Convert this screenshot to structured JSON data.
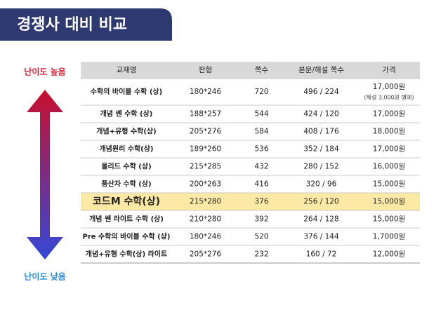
{
  "header": {
    "title": "경쟁사 대비 비교"
  },
  "difficulty": {
    "high": "난이도 높음",
    "low": "난이도 낮음"
  },
  "table": {
    "columns": [
      "교재명",
      "판형",
      "쪽수",
      "본문/해설 쪽수",
      "가격"
    ],
    "rows": [
      {
        "cells": [
          "수학의 바이블 수학 (상)",
          "180*246",
          "720",
          "496 / 224",
          "17,000원"
        ],
        "note": "(해설 3,000원 별매)"
      },
      {
        "cells": [
          "개념 쎈 수학 (상)",
          "188*257",
          "544",
          "424 / 120",
          "17,000원"
        ]
      },
      {
        "cells": [
          "개념+유형 수학(상)",
          "205*276",
          "584",
          "408 / 176",
          "18,000원"
        ]
      },
      {
        "cells": [
          "개념원리 수학(상)",
          "189*260",
          "536",
          "352 / 184",
          "17,000원"
        ]
      },
      {
        "cells": [
          "올리드 수학 (상)",
          "215*285",
          "432",
          "280 / 152",
          "16,000원"
        ]
      },
      {
        "cells": [
          "풍산자 수학 (상)",
          "200*263",
          "416",
          "320 / 96",
          "15,000원"
        ]
      },
      {
        "cells": [
          "코드M 수학(상)",
          "215*280",
          "376",
          "256 / 120",
          "15,000원"
        ],
        "highlighted": true
      },
      {
        "cells": [
          "개념 쎈 라이트 수학 (상)",
          "210*280",
          "392",
          "264 / 128",
          "15,000원"
        ]
      },
      {
        "cells": [
          "Pre 수학의 바이블 수학 (상)",
          "180*246",
          "520",
          "376 / 144",
          "1,7000원"
        ]
      },
      {
        "cells": [
          "개념+유형 수학(상) 라이트",
          "205*276",
          "232",
          "160 / 72",
          "12,000원"
        ]
      }
    ]
  }
}
